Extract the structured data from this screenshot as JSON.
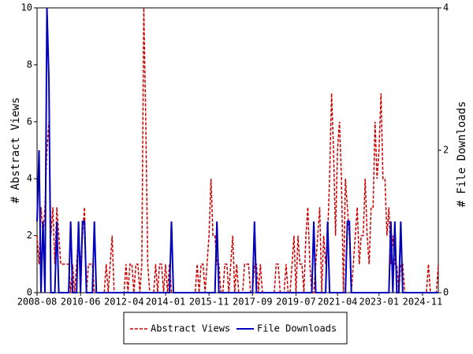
{
  "chart_data": {
    "type": "line",
    "y_label": "# Abstract Views",
    "y2_label": "# File Downloads",
    "categories": [
      "2008-08",
      null,
      null,
      null,
      null,
      null,
      null,
      null,
      null,
      null,
      null,
      null,
      null,
      null,
      null,
      null,
      null,
      null,
      null,
      null,
      null,
      null,
      "2010-06",
      null,
      null,
      null,
      null,
      null,
      null,
      null,
      null,
      null,
      null,
      null,
      null,
      null,
      null,
      null,
      null,
      null,
      null,
      null,
      null,
      null,
      "2012-04",
      null,
      null,
      null,
      null,
      null,
      null,
      null,
      null,
      null,
      null,
      null,
      null,
      null,
      null,
      null,
      null,
      null,
      null,
      null,
      null,
      "2014-01",
      null,
      null,
      null,
      null,
      null,
      null,
      null,
      null,
      null,
      null,
      null,
      null,
      null,
      null,
      null,
      null,
      null,
      null,
      null,
      null,
      null,
      "2015-11",
      null,
      null,
      null,
      null,
      null,
      null,
      null,
      null,
      null,
      null,
      null,
      null,
      null,
      null,
      null,
      null,
      null,
      null,
      null,
      null,
      null,
      "2017-09",
      null,
      null,
      null,
      null,
      null,
      null,
      null,
      null,
      null,
      null,
      null,
      null,
      null,
      null,
      null,
      null,
      null,
      null,
      null,
      null,
      null,
      "2019-07",
      null,
      null,
      null,
      null,
      null,
      null,
      null,
      null,
      null,
      null,
      null,
      null,
      null,
      null,
      null,
      null,
      null,
      null,
      null,
      null,
      "2021-04",
      null,
      null,
      null,
      null,
      null,
      null,
      null,
      null,
      null,
      null,
      null,
      null,
      null,
      null,
      null,
      null,
      null,
      null,
      null,
      null,
      "2023-01",
      null,
      null,
      null,
      null,
      null,
      null,
      null,
      null,
      null,
      null,
      null,
      null,
      null,
      null,
      null,
      null,
      null,
      null,
      null,
      null,
      null,
      "2024-11",
      null,
      null,
      null,
      null,
      null,
      null,
      null,
      null
    ],
    "series": [
      {
        "name": "Abstract Views",
        "color": "#cc0000",
        "dash": true,
        "values": [
          2,
          1,
          3,
          2,
          3,
          5,
          6,
          2,
          3,
          1,
          3,
          2,
          1,
          1,
          1,
          1,
          1,
          0,
          1,
          0,
          1,
          2,
          1,
          2,
          3,
          0,
          1,
          1,
          1,
          0,
          0,
          0,
          0,
          0,
          0,
          1,
          0,
          1,
          2,
          0,
          0,
          0,
          0,
          0,
          0,
          1,
          0,
          1,
          1,
          0,
          1,
          1,
          0,
          1,
          10,
          6,
          1,
          0,
          0,
          0,
          1,
          0,
          1,
          1,
          0,
          1,
          0,
          1,
          0,
          0,
          0,
          0,
          0,
          0,
          0,
          0,
          0,
          0,
          0,
          0,
          0,
          1,
          0,
          1,
          1,
          0,
          1,
          2,
          4,
          2,
          2,
          1,
          1,
          0,
          0,
          1,
          1,
          0,
          1,
          2,
          0,
          1,
          0,
          0,
          0,
          1,
          1,
          1,
          0,
          0,
          1,
          1,
          0,
          1,
          0,
          0,
          0,
          0,
          0,
          0,
          0,
          1,
          1,
          0,
          0,
          0,
          1,
          0,
          0,
          1,
          2,
          0,
          2,
          1,
          1,
          0,
          2,
          3,
          1,
          0,
          0,
          1,
          2,
          3,
          0,
          2,
          1,
          2,
          4,
          7,
          5,
          2,
          5,
          6,
          4,
          0,
          4,
          3,
          2,
          0,
          1,
          2,
          3,
          1,
          2,
          2,
          4,
          2,
          1,
          3,
          3,
          6,
          4,
          5,
          7,
          4,
          4,
          2,
          3,
          1,
          2,
          1,
          1,
          0,
          1,
          1,
          0,
          0,
          0,
          0,
          0,
          0,
          0,
          0,
          0,
          0,
          0,
          0,
          1,
          0,
          0,
          0,
          0,
          1
        ]
      },
      {
        "name": "File Downloads",
        "color": "#0000bb",
        "dash": false,
        "axis": "y2",
        "values": [
          1,
          2,
          0,
          1,
          0,
          4,
          3,
          0,
          0,
          0,
          1,
          0,
          0,
          0,
          0,
          0,
          0,
          1,
          0,
          0,
          0,
          1,
          0,
          1,
          1,
          0,
          0,
          0,
          0,
          1,
          0,
          0,
          0,
          0,
          0,
          0,
          0,
          0,
          0,
          0,
          0,
          0,
          0,
          0,
          0,
          0,
          0,
          0,
          0,
          0,
          0,
          0,
          0,
          0,
          0,
          0,
          0,
          0,
          0,
          0,
          0,
          0,
          0,
          0,
          0,
          0,
          0,
          0,
          1,
          0,
          0,
          0,
          0,
          0,
          0,
          0,
          0,
          0,
          0,
          0,
          0,
          0,
          0,
          0,
          0,
          0,
          0,
          0,
          0,
          0,
          0,
          1,
          0,
          0,
          0,
          0,
          0,
          0,
          0,
          0,
          0,
          0,
          0,
          0,
          0,
          0,
          0,
          0,
          0,
          0,
          1,
          0,
          0,
          0,
          0,
          0,
          0,
          0,
          0,
          0,
          0,
          0,
          0,
          0,
          0,
          0,
          0,
          0,
          0,
          0,
          0,
          0,
          0,
          0,
          0,
          0,
          0,
          0,
          0,
          0,
          1,
          0,
          0,
          0,
          0,
          0,
          0,
          1,
          0,
          0,
          0,
          0,
          0,
          0,
          0,
          0,
          0,
          1,
          1,
          0,
          0,
          0,
          0,
          0,
          0,
          0,
          0,
          0,
          0,
          0,
          0,
          0,
          0,
          0,
          0,
          0,
          0,
          0,
          0,
          1,
          0,
          1,
          0,
          0,
          1,
          0,
          0,
          0,
          0,
          0,
          0,
          0,
          0,
          0,
          0,
          0,
          0,
          0,
          0,
          0,
          0,
          0,
          0,
          0
        ]
      }
    ],
    "ylim": [
      0,
      10
    ],
    "yticks": [
      0,
      2,
      4,
      6,
      8,
      10
    ],
    "y2lim": [
      0,
      4
    ],
    "y2ticks": [
      0,
      2,
      4
    ],
    "legend": "bottom"
  }
}
